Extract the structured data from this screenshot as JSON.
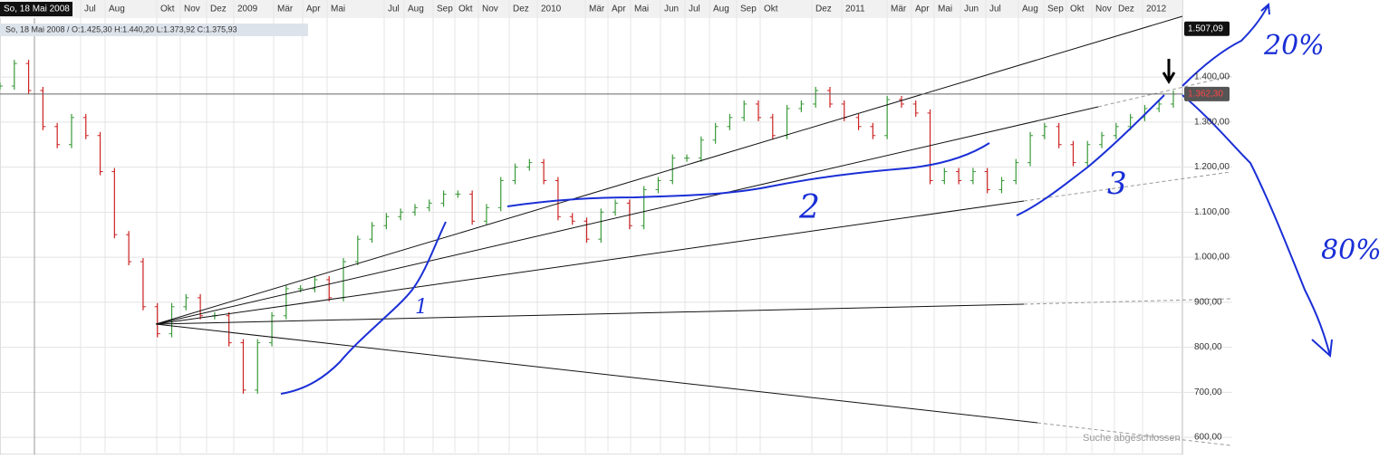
{
  "chart_data": {
    "type": "ohlc",
    "date_badge": "So, 18 Mai 2008",
    "info": "So, 18 Mai 2008 / O:1.425,30 H:1.440,20 L:1.373,92 C:1.375,93",
    "x_labels": [
      "Jul",
      "Aug",
      "Okt",
      "Nov",
      "Dez",
      "2009",
      "Mär",
      "Apr",
      "Mai",
      "Jul",
      "Aug",
      "Sep",
      "Okt",
      "Nov",
      "Dez",
      "2010",
      "Mär",
      "Apr",
      "Mai",
      "Jun",
      "Jul",
      "Aug",
      "Sep",
      "Okt",
      "Dez",
      "2011",
      "Mär",
      "Apr",
      "Mai",
      "Jun",
      "Jul",
      "Aug",
      "Sep",
      "Okt",
      "Nov",
      "Dez",
      "2012"
    ],
    "values": [
      1380,
      1430,
      1370,
      1290,
      1250,
      1310,
      1270,
      1190,
      1050,
      990,
      890,
      830,
      890,
      910,
      870,
      870,
      810,
      705,
      810,
      870,
      930,
      930,
      950,
      910,
      990,
      1040,
      1070,
      1090,
      1100,
      1110,
      1120,
      1140,
      1140,
      1080,
      1110,
      1170,
      1200,
      1210,
      1170,
      1090,
      1080,
      1040,
      1100,
      1120,
      1070,
      1150,
      1170,
      1220,
      1220,
      1260,
      1290,
      1310,
      1340,
      1310,
      1270,
      1330,
      1340,
      1370,
      1340,
      1310,
      1290,
      1270,
      1350,
      1340,
      1320,
      1170,
      1190,
      1170,
      1190,
      1150,
      1170,
      1210,
      1270,
      1290,
      1250,
      1210,
      1250,
      1270,
      1290,
      1310,
      1330,
      1340,
      1362
    ],
    "up_color": "#3a9a3a",
    "down_color": "#cc2222",
    "ylim": [
      566,
      1571
    ],
    "yticks": [
      {
        "value": 600,
        "label": "600,00"
      },
      {
        "value": 700,
        "label": "700,00"
      },
      {
        "value": 800,
        "label": "800,00"
      },
      {
        "value": 900,
        "label": "900,00"
      },
      {
        "value": 1000,
        "label": "1.000,00"
      },
      {
        "value": 1100,
        "label": "1.100,00"
      },
      {
        "value": 1200,
        "label": "1.200,00"
      },
      {
        "value": 1300,
        "label": "1.300,00"
      },
      {
        "value": 1400,
        "label": "1.400,00"
      }
    ],
    "price_badges": [
      {
        "value": 1507.09,
        "label": "1.507,09"
      },
      {
        "value": 1362.3,
        "label": "1.362,30"
      }
    ],
    "annotations": [
      "20%",
      "80%",
      "1",
      "2",
      "3"
    ],
    "status": "Suche abgeschlossen"
  }
}
